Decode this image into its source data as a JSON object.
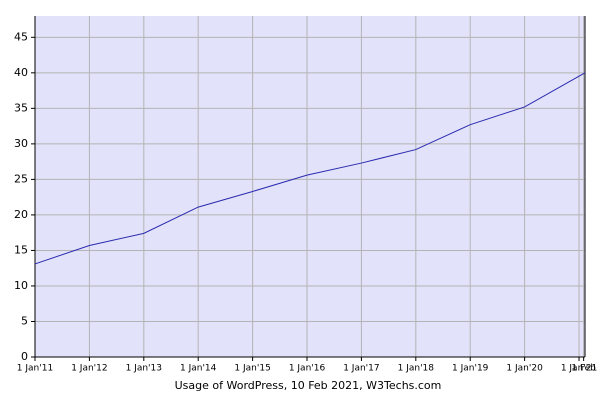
{
  "chart_data": {
    "type": "line",
    "title": "Usage of WordPress, 10 Feb 2021, W3Techs.com",
    "x": [
      2011,
      2012,
      2013,
      2014,
      2015,
      2016,
      2017,
      2018,
      2019,
      2020,
      2021.11
    ],
    "series": [
      {
        "name": "WordPress",
        "color": "#2a2ab0",
        "values": [
          13.1,
          15.7,
          17.4,
          21.1,
          23.3,
          25.6,
          27.3,
          29.2,
          32.7,
          35.2,
          40.0
        ]
      }
    ],
    "xlim": [
      2011,
      2021.11
    ],
    "xticks": [
      {
        "value": 2011,
        "label": "1 Jan'11"
      },
      {
        "value": 2012,
        "label": "1 Jan'12"
      },
      {
        "value": 2013,
        "label": "1 Jan'13"
      },
      {
        "value": 2014,
        "label": "1 Jan'14"
      },
      {
        "value": 2015,
        "label": "1 Jan'15"
      },
      {
        "value": 2016,
        "label": "1 Jan'16"
      },
      {
        "value": 2017,
        "label": "1 Jan'17"
      },
      {
        "value": 2018,
        "label": "1 Jan'18"
      },
      {
        "value": 2019,
        "label": "1 Jan'19"
      },
      {
        "value": 2020,
        "label": "1 Jan'20"
      },
      {
        "value": 2021,
        "label": "1 Jan'21"
      },
      {
        "value": 2021.085,
        "label": "1 Feb"
      }
    ],
    "ylim": [
      0,
      48
    ],
    "yticks": [
      0,
      5,
      10,
      15,
      20,
      25,
      30,
      35,
      40,
      45
    ],
    "grid": true,
    "background": "#e2e2fa"
  }
}
